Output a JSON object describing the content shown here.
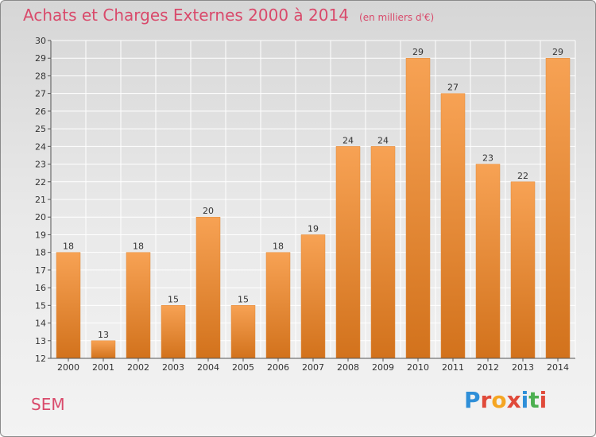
{
  "header": {
    "title": "Achats et Charges Externes 2000 à 2014",
    "unit": "(en milliers d'€)"
  },
  "footer": {
    "commune": "SEM",
    "brand": [
      "P",
      "r",
      "o",
      "x",
      "i",
      "t",
      "i"
    ],
    "brand_colors": [
      "#2f8fd8",
      "#e04a3a",
      "#f5a623",
      "#e04a3a",
      "#2f8fd8",
      "#4caf50",
      "#e04a3a"
    ]
  },
  "colors": {
    "bar_top": "#f7a254",
    "bar_bottom": "#d2721c",
    "title": "#d94a6b"
  },
  "chart_data": {
    "type": "bar",
    "title": "Achats et Charges Externes 2000 à 2014",
    "subtitle": "(en milliers d'€)",
    "categories": [
      "2000",
      "2001",
      "2002",
      "2003",
      "2004",
      "2005",
      "2006",
      "2007",
      "2008",
      "2009",
      "2010",
      "2011",
      "2012",
      "2013",
      "2014"
    ],
    "values": [
      18,
      13,
      18,
      15,
      20,
      15,
      18,
      19,
      24,
      24,
      29,
      27,
      23,
      22,
      29
    ],
    "ylim": [
      12,
      30
    ],
    "yticks": [
      12,
      13,
      14,
      15,
      16,
      17,
      18,
      19,
      20,
      21,
      22,
      23,
      24,
      25,
      26,
      27,
      28,
      29,
      30
    ],
    "grid": true,
    "legend": "none"
  }
}
